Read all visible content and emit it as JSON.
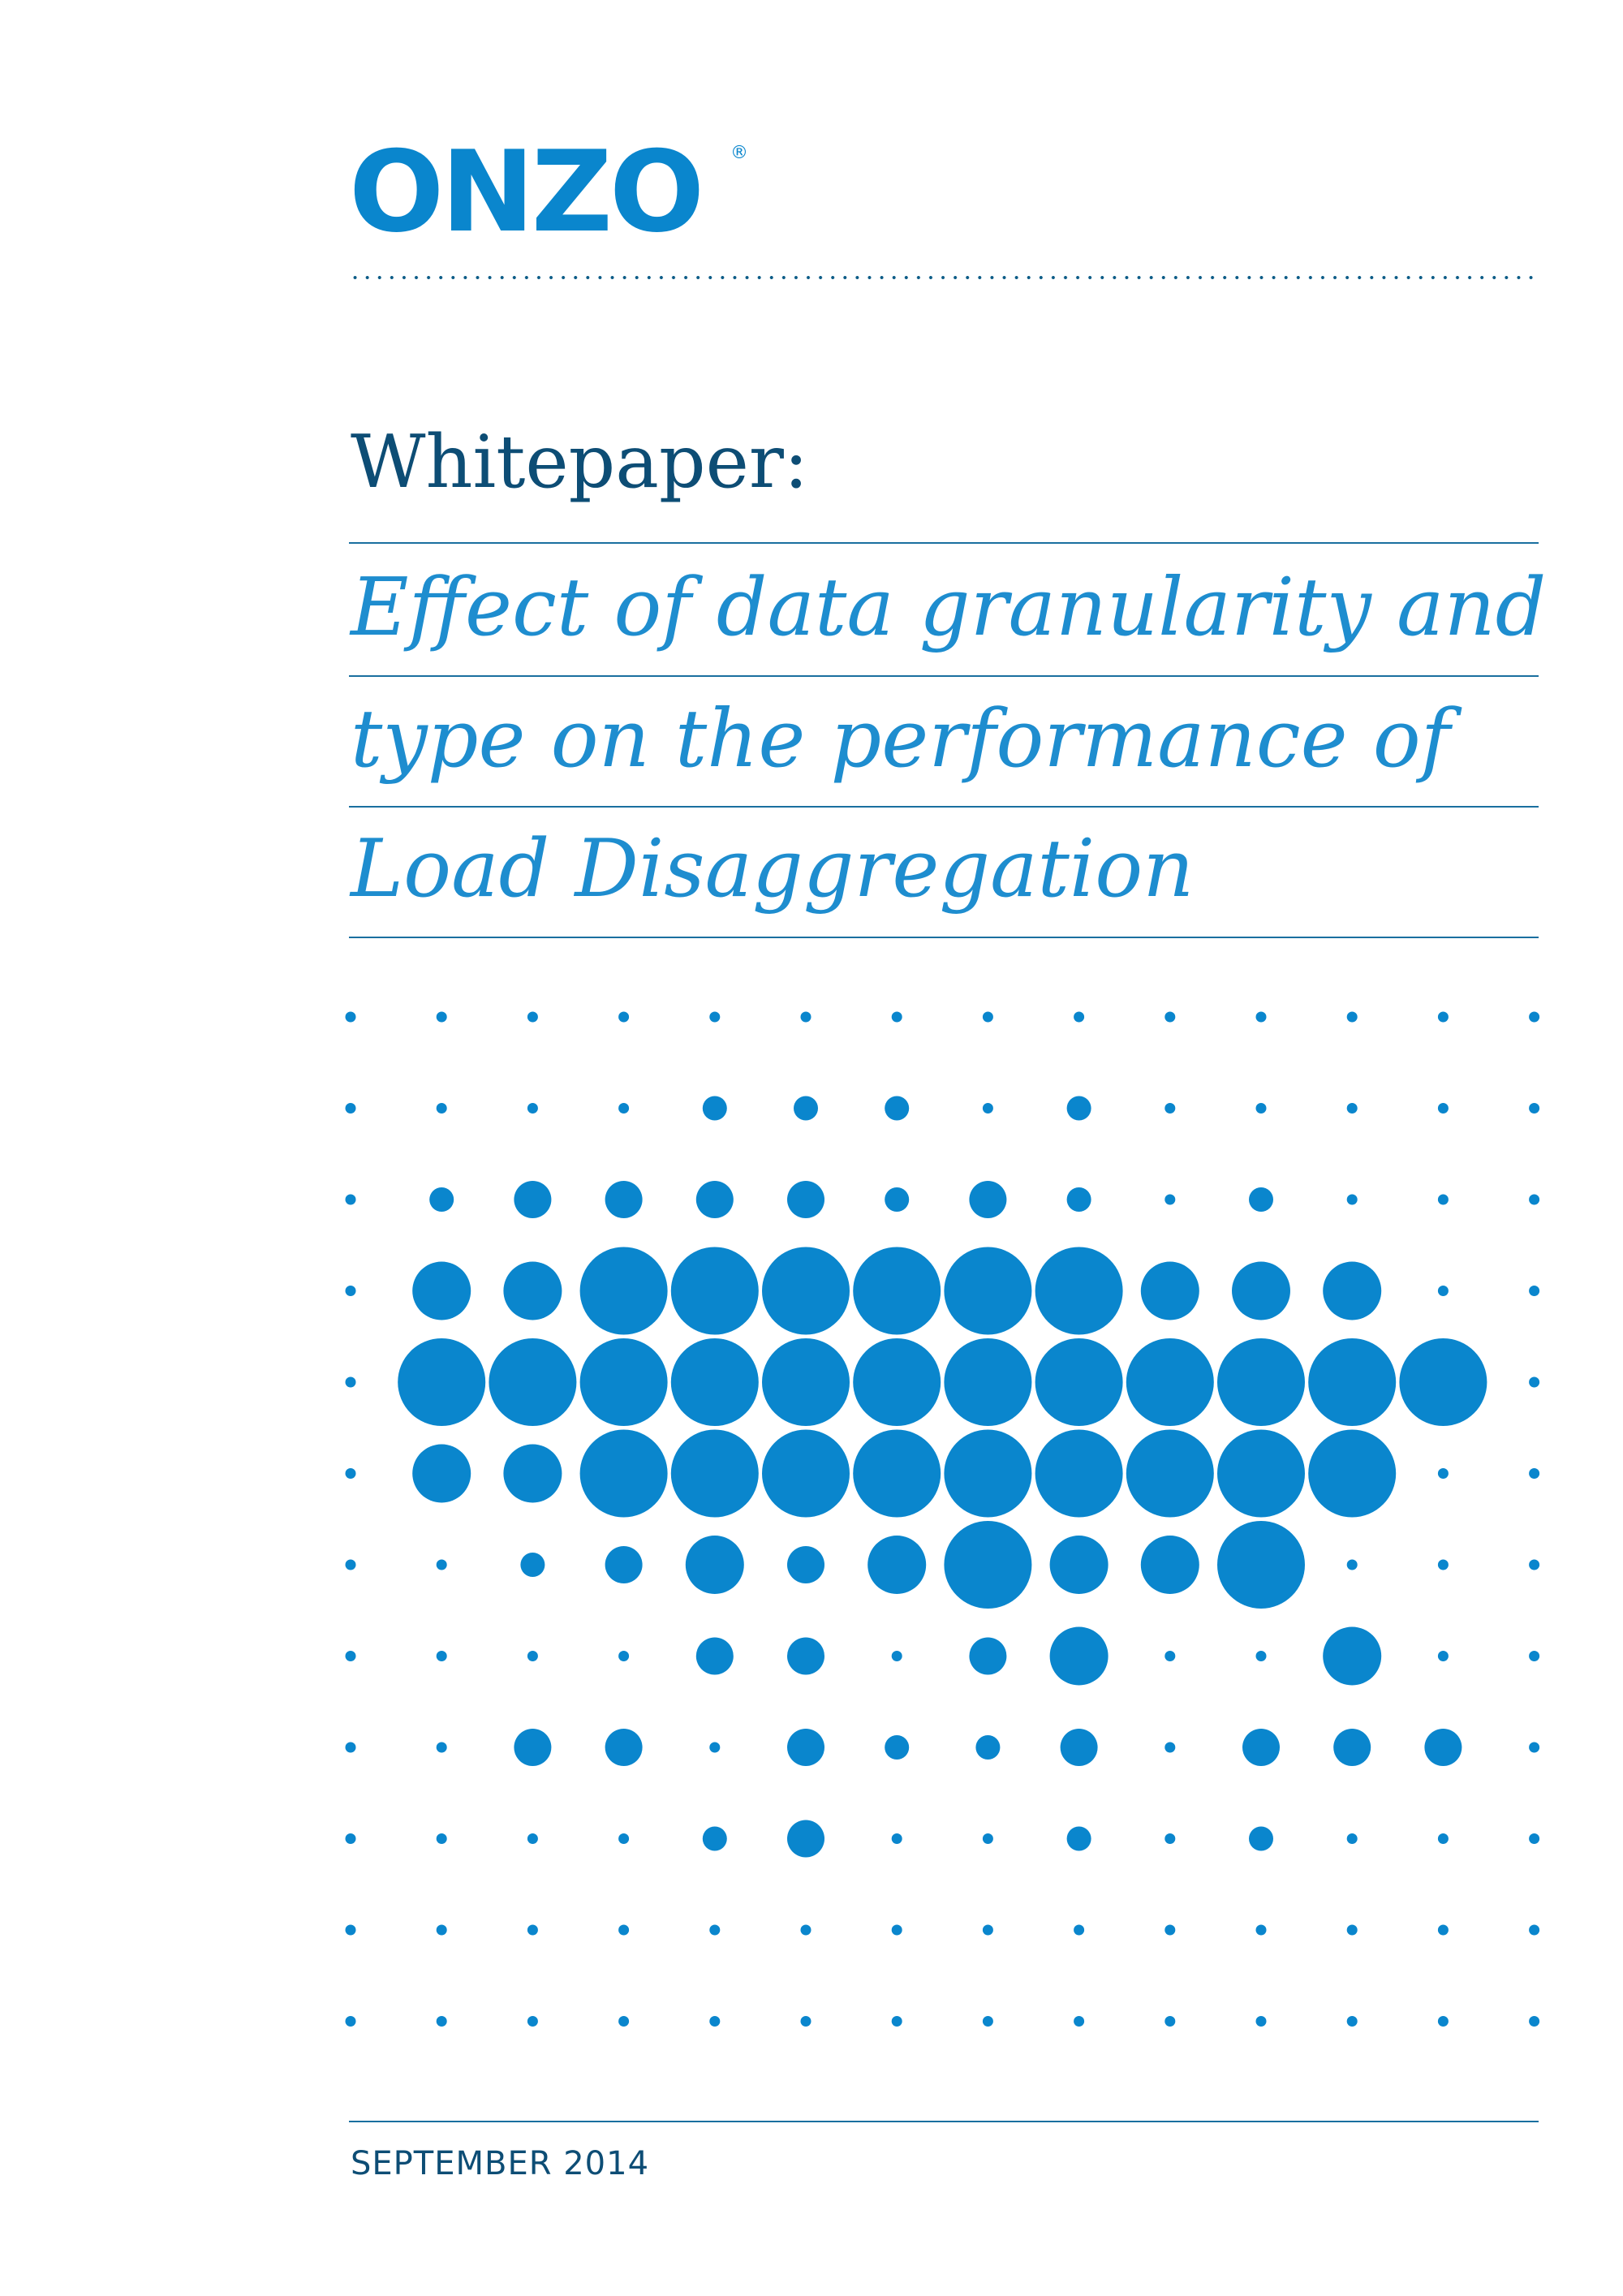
{
  "brand": {
    "name": "ONZO",
    "registered_mark": "®",
    "color": "#0a86cd"
  },
  "header": {
    "label": "Whitepaper:"
  },
  "title": {
    "lines": [
      "Effect of data granularity and",
      "type on the performance of",
      "Load Disaggregation"
    ]
  },
  "footer": {
    "date": "SEPTEMBER 2014"
  },
  "colors": {
    "navy": "#0d4d75",
    "accent": "#1e8dcf",
    "dot": "#0a86cd"
  },
  "dot_pattern": {
    "levels_description": "0=tiny dot, 1=small, 2=medium, 3=large, 4=very large",
    "rows": [
      "00000000000000",
      "00001110100000",
      "01222212101000",
      "03344444433300",
      "04444444444440",
      "03344444444400",
      "00123234334000",
      "00002202300300",
      "00220211202220",
      "00001200101000",
      "00000000000000",
      "00000000000000"
    ]
  }
}
